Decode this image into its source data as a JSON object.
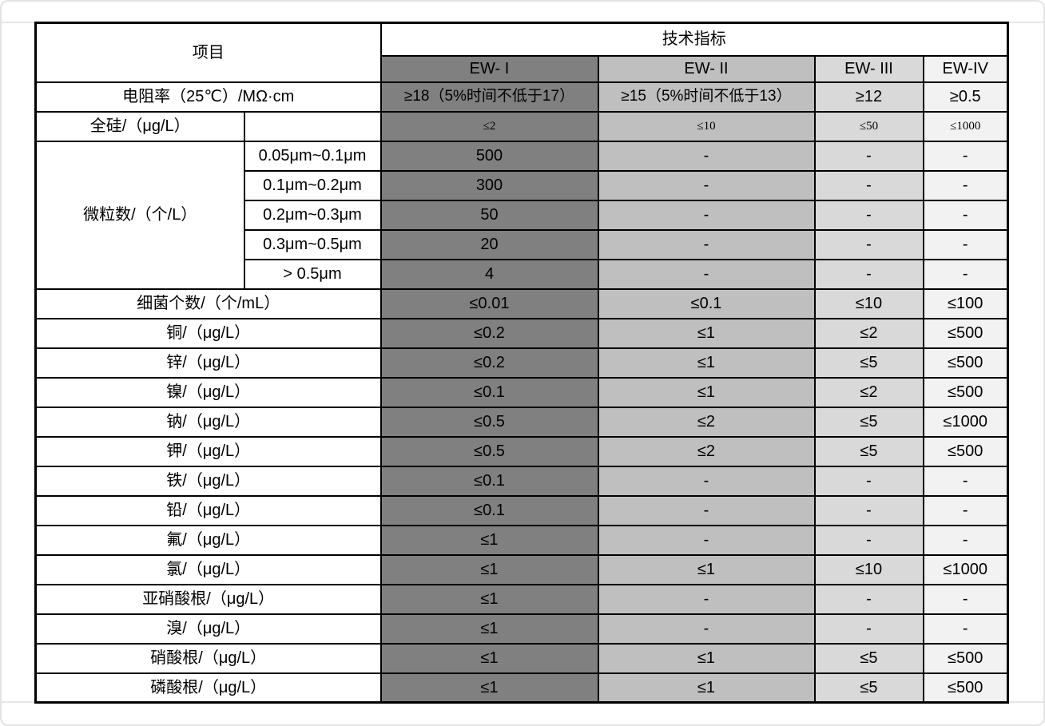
{
  "frame": {
    "border_color": "#e3e3e3",
    "rule_color": "#e6e6e6",
    "background": "#ffffff"
  },
  "table": {
    "colors": {
      "ew1": "#808080",
      "ew2": "#bfbfbf",
      "ew3": "#d9d9d9",
      "ew4": "#f2f2f2",
      "grid": "#000000",
      "text": "#000000"
    },
    "header": {
      "item": "项目",
      "spec": "技术指标",
      "grades": [
        "EW- I",
        "EW- II",
        "EW- III",
        "EW-IV"
      ]
    },
    "resistivity": {
      "label": "电阻率（25℃）/MΩ·cm",
      "values": [
        "≥18（5%时间不低于17）",
        "≥15（5%时间不低于13）",
        "≥12",
        "≥0.5"
      ]
    },
    "silicon": {
      "label": "全硅/（μg/L）",
      "values": [
        "≤2",
        "≤10",
        "≤50",
        "≤1000"
      ]
    },
    "particles": {
      "label": "微粒数/（个/L）",
      "subrows": [
        {
          "size": "0.05μm~0.1μm",
          "values": [
            "500",
            "-",
            "-",
            "-"
          ]
        },
        {
          "size": "0.1μm~0.2μm",
          "values": [
            "300",
            "-",
            "-",
            "-"
          ]
        },
        {
          "size": "0.2μm~0.3μm",
          "values": [
            "50",
            "-",
            "-",
            "-"
          ]
        },
        {
          "size": "0.3μm~0.5μm",
          "values": [
            "20",
            "-",
            "-",
            "-"
          ]
        },
        {
          "size": "> 0.5μm",
          "values": [
            "4",
            "-",
            "-",
            "-"
          ]
        }
      ]
    },
    "simple_rows": [
      {
        "label": "细菌个数/（个/mL）",
        "values": [
          "≤0.01",
          "≤0.1",
          "≤10",
          "≤100"
        ]
      },
      {
        "label": "铜/（μg/L）",
        "values": [
          "≤0.2",
          "≤1",
          "≤2",
          "≤500"
        ]
      },
      {
        "label": "锌/（μg/L）",
        "values": [
          "≤0.2",
          "≤1",
          "≤5",
          "≤500"
        ]
      },
      {
        "label": "镍/（μg/L）",
        "values": [
          "≤0.1",
          "≤1",
          "≤2",
          "≤500"
        ]
      },
      {
        "label": "钠/（μg/L）",
        "values": [
          "≤0.5",
          "≤2",
          "≤5",
          "≤1000"
        ]
      },
      {
        "label": "钾/（μg/L）",
        "values": [
          "≤0.5",
          "≤2",
          "≤5",
          "≤500"
        ]
      },
      {
        "label": "铁/（μg/L）",
        "values": [
          "≤0.1",
          "-",
          "-",
          "-"
        ]
      },
      {
        "label": "铅/（μg/L）",
        "values": [
          "≤0.1",
          "-",
          "-",
          "-"
        ]
      },
      {
        "label": "氟/（μg/L）",
        "values": [
          "≤1",
          "-",
          "-",
          "-"
        ]
      },
      {
        "label": "氯/（μg/L）",
        "values": [
          "≤1",
          "≤1",
          "≤10",
          "≤1000"
        ]
      },
      {
        "label": "亚硝酸根/（μg/L）",
        "values": [
          "≤1",
          "-",
          "-",
          "-"
        ]
      },
      {
        "label": "溴/（μg/L）",
        "values": [
          "≤1",
          "-",
          "-",
          "-"
        ]
      },
      {
        "label": "硝酸根/（μg/L）",
        "values": [
          "≤1",
          "≤1",
          "≤5",
          "≤500"
        ]
      },
      {
        "label": "磷酸根/（μg/L）",
        "values": [
          "≤1",
          "≤1",
          "≤5",
          "≤500"
        ]
      }
    ]
  }
}
